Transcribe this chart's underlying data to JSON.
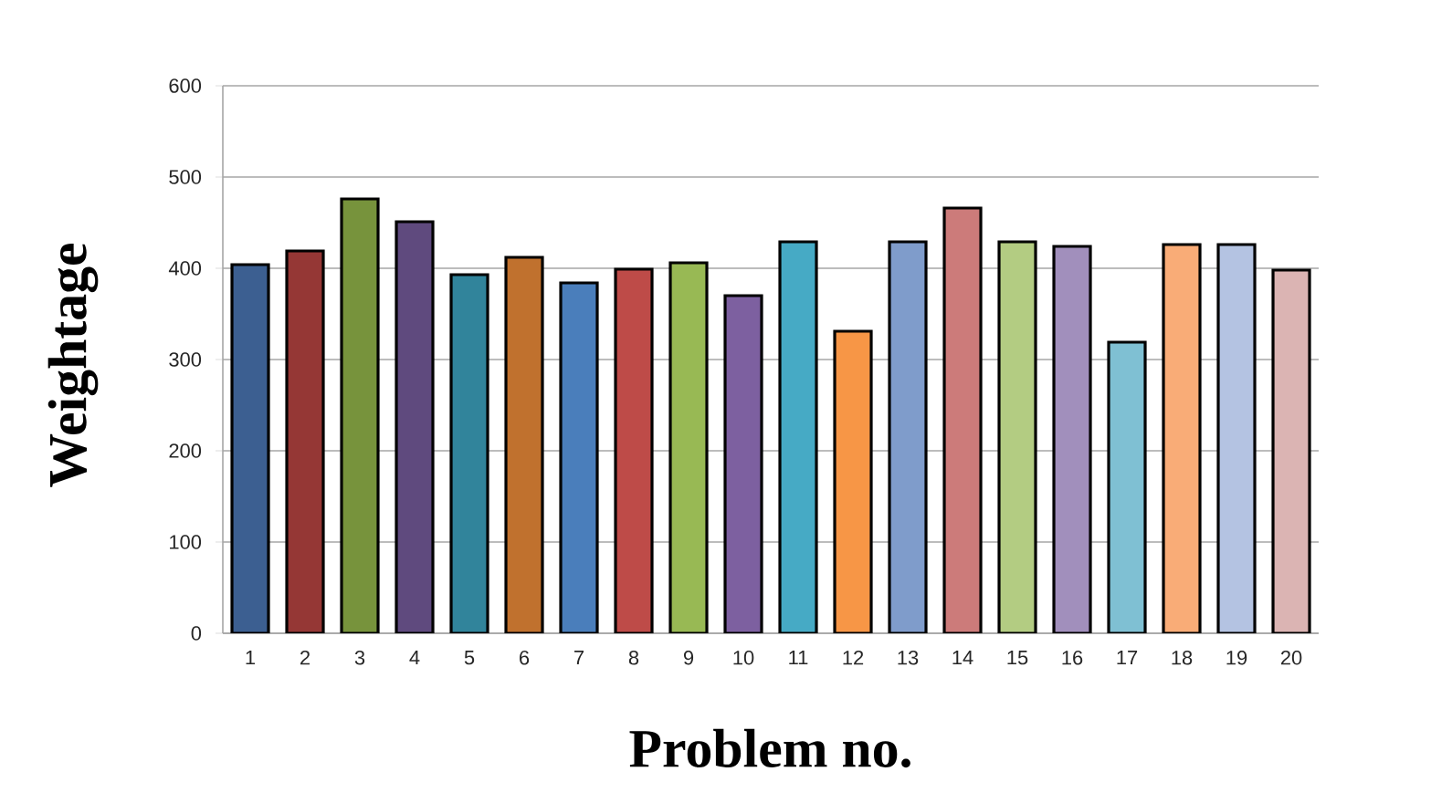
{
  "chart_data": {
    "type": "bar",
    "xlabel": "Problem no.",
    "ylabel": "Weightage",
    "categories": [
      "1",
      "2",
      "3",
      "4",
      "5",
      "6",
      "7",
      "8",
      "9",
      "10",
      "11",
      "12",
      "13",
      "14",
      "15",
      "16",
      "17",
      "18",
      "19",
      "20"
    ],
    "values": [
      404,
      419,
      476,
      451,
      393,
      412,
      384,
      399,
      406,
      370,
      429,
      331,
      429,
      466,
      429,
      424,
      319,
      426,
      426,
      398
    ],
    "colors": [
      "#3c5f91",
      "#953735",
      "#77933c",
      "#5f4a7e",
      "#31849b",
      "#c0712e",
      "#4a7ebb",
      "#be4b48",
      "#98b954",
      "#7d60a0",
      "#46aac5",
      "#f79646",
      "#7f9ccb",
      "#cc7b7a",
      "#b3cc82",
      "#a18fbc",
      "#7fc0d3",
      "#f9ac77",
      "#b4c3e2",
      "#dbb4b3"
    ],
    "ylim": [
      0,
      600
    ],
    "yticks": [
      0,
      100,
      200,
      300,
      400,
      500,
      600
    ],
    "grid": "y"
  }
}
